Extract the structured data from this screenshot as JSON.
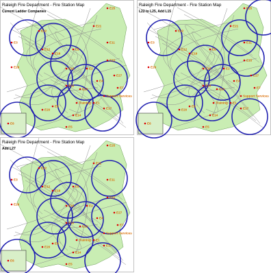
{
  "panels": [
    {
      "title": "Raleigh Fire Department - Fire Station Map",
      "subtitle": "Current Ladder Companies",
      "stations": [
        "E25",
        "E3",
        "E22",
        "E21",
        "E11",
        "E16",
        "E15",
        "E19",
        "E8",
        "E12",
        "E26",
        "E2",
        "E4",
        "E10",
        "E27",
        "E13",
        "E1",
        "E7",
        "E9",
        "E20",
        "E14",
        "E17",
        "E5",
        "E6",
        "Training",
        "Support Services"
      ]
    },
    {
      "title": "Raleigh Fire Department - Fire Station Map",
      "subtitle": "L22 to L25, Add L15",
      "stations": [
        "E25",
        "E3",
        "E22",
        "E21",
        "E11",
        "E16",
        "E15",
        "E19",
        "E8",
        "E12",
        "E26",
        "E2",
        "E4",
        "E10",
        "E27",
        "E13",
        "E1",
        "E7",
        "E9",
        "E20",
        "E14",
        "E17",
        "E5",
        "E6",
        "Training",
        "Support Services"
      ]
    },
    {
      "title": "Raleigh Fire Department - Fire Station Map",
      "subtitle": "Add L27",
      "stations": [
        "E25",
        "E3",
        "E22",
        "E21",
        "E11",
        "E16",
        "E15",
        "E19",
        "E8",
        "E12",
        "E26",
        "E2",
        "E4",
        "E10",
        "E27",
        "E13",
        "E1",
        "E7",
        "E9",
        "E20",
        "E14",
        "E17",
        "E5",
        "E6",
        "Training",
        "Support Services"
      ]
    }
  ]
}
